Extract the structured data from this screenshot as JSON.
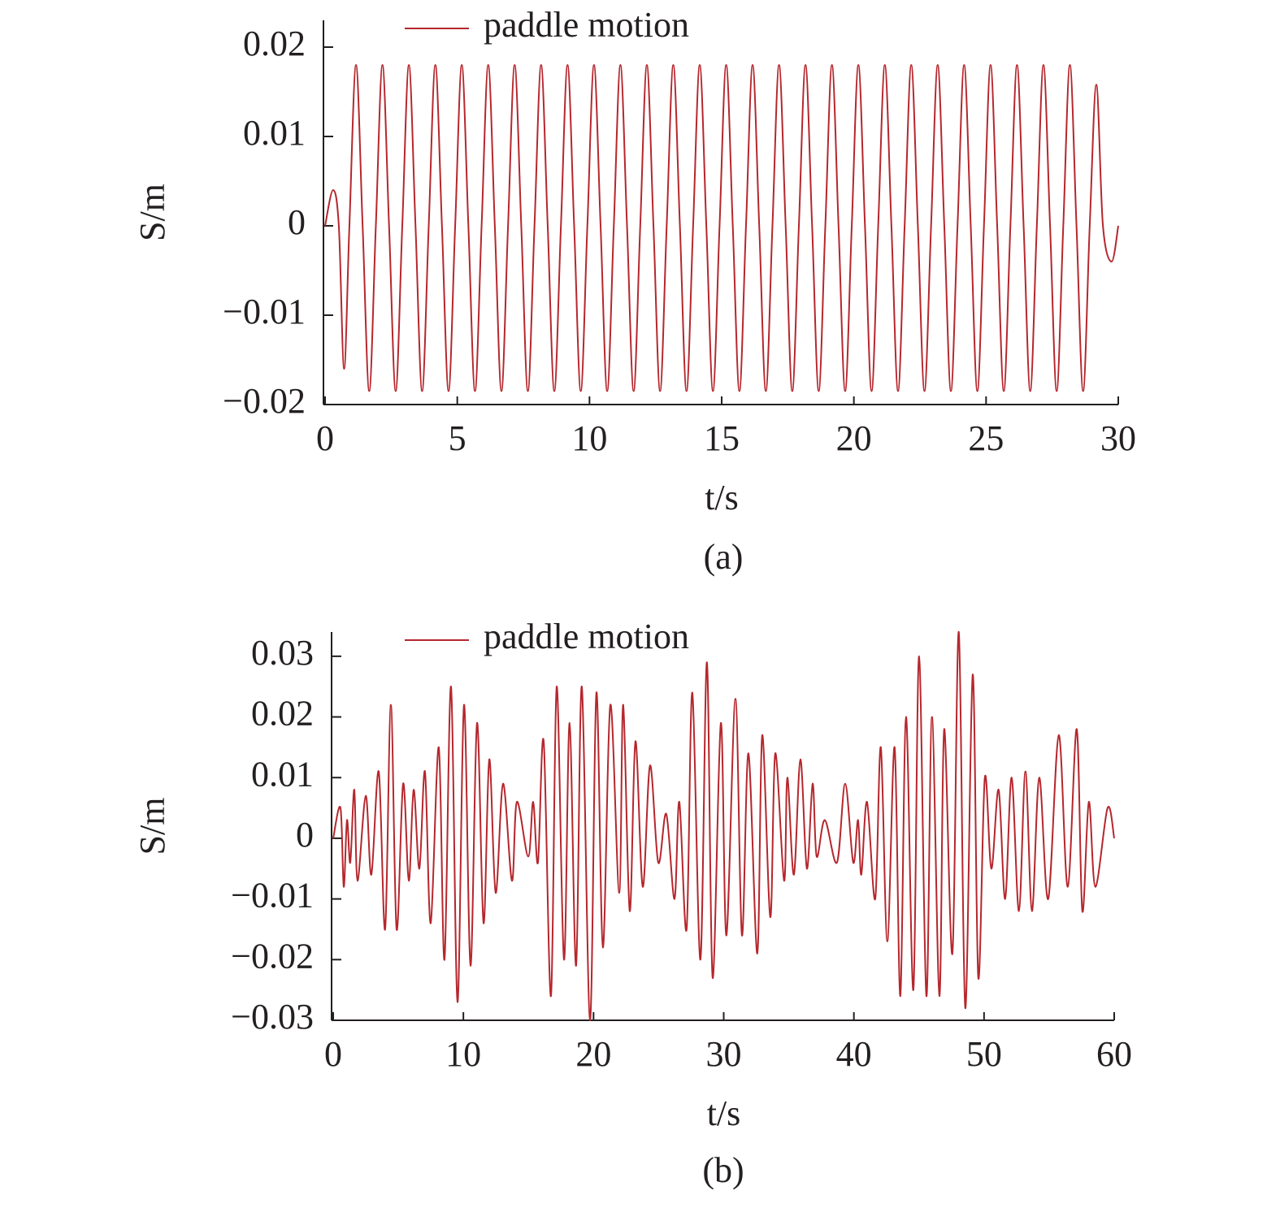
{
  "chart_data": [
    {
      "type": "line",
      "caption": "(a)",
      "x_label": "t/s",
      "y_label": "S/m",
      "x": [
        0,
        0.3,
        0.52,
        0.72,
        0.92,
        1.17,
        1.42,
        1.67,
        1.92,
        2.17,
        2.42,
        2.67,
        2.92,
        3.17,
        3.42,
        3.67,
        3.92,
        4.17,
        4.42,
        4.67,
        4.92,
        5.17,
        5.42,
        5.67,
        5.92,
        6.17,
        6.42,
        6.67,
        6.92,
        7.17,
        7.42,
        7.67,
        7.92,
        8.17,
        8.42,
        8.67,
        8.92,
        9.17,
        9.42,
        9.67,
        9.92,
        10.17,
        10.42,
        10.67,
        10.92,
        11.17,
        11.42,
        11.67,
        11.92,
        12.17,
        12.42,
        12.67,
        12.92,
        13.17,
        13.42,
        13.67,
        13.92,
        14.17,
        14.42,
        14.67,
        14.92,
        15.17,
        15.42,
        15.67,
        15.92,
        16.17,
        16.42,
        16.67,
        16.92,
        17.17,
        17.42,
        17.67,
        17.92,
        18.17,
        18.42,
        18.67,
        18.92,
        19.17,
        19.42,
        19.67,
        19.92,
        20.17,
        20.42,
        20.67,
        20.92,
        21.17,
        21.42,
        21.67,
        21.92,
        22.17,
        22.42,
        22.67,
        22.92,
        23.17,
        23.42,
        23.67,
        23.92,
        24.17,
        24.42,
        24.67,
        24.92,
        25.17,
        25.42,
        25.67,
        25.92,
        26.17,
        26.42,
        26.67,
        26.92,
        27.17,
        27.42,
        27.67,
        27.92,
        28.17,
        28.42,
        28.67,
        28.92,
        29.17,
        29.42,
        29.75,
        30
      ],
      "series": [
        {
          "name": "paddle motion",
          "color": "#b5272d",
          "values": [
            0,
            0.004,
            0,
            -0.016,
            0,
            0.018,
            0,
            -0.0185,
            0,
            0.018,
            0,
            -0.0185,
            0,
            0.018,
            0,
            -0.0185,
            0,
            0.018,
            0,
            -0.0185,
            0,
            0.018,
            0,
            -0.0185,
            0,
            0.018,
            0,
            -0.0185,
            0,
            0.018,
            0,
            -0.0185,
            0,
            0.018,
            0,
            -0.0185,
            0,
            0.018,
            0,
            -0.0185,
            0,
            0.018,
            0,
            -0.0185,
            0,
            0.018,
            0,
            -0.0185,
            0,
            0.018,
            0,
            -0.0185,
            0,
            0.018,
            0,
            -0.0185,
            0,
            0.018,
            0,
            -0.0185,
            0,
            0.018,
            0,
            -0.0185,
            0,
            0.018,
            0,
            -0.0185,
            0,
            0.018,
            0,
            -0.0185,
            0,
            0.018,
            0,
            -0.0185,
            0,
            0.018,
            0,
            -0.0185,
            0,
            0.018,
            0,
            -0.0185,
            0,
            0.018,
            0,
            -0.0185,
            0,
            0.018,
            0,
            -0.0185,
            0,
            0.018,
            0,
            -0.0185,
            0,
            0.018,
            0,
            -0.0185,
            0,
            0.018,
            0,
            -0.0185,
            0,
            0.018,
            0,
            -0.0185,
            0,
            0.018,
            0,
            -0.0185,
            0,
            0.018,
            0,
            -0.0185,
            0,
            0.0158,
            0,
            -0.004,
            0
          ]
        }
      ],
      "xlim": [
        0,
        30
      ],
      "ylim": [
        -0.02,
        0.023
      ],
      "xticks": [
        0,
        5,
        10,
        15,
        20,
        25,
        30
      ],
      "yticks": [
        {
          "value": -0.02,
          "label": "−0.02"
        },
        {
          "value": -0.01,
          "label": "−0.01"
        },
        0,
        0.01,
        0.02
      ]
    },
    {
      "type": "line",
      "caption": "(b)",
      "x_label": "t/s",
      "y_label": "S/m",
      "x": [
        0,
        0.56,
        0.81,
        1.06,
        1.31,
        1.62,
        1.87,
        2.5,
        2.93,
        3.5,
        3.99,
        4.43,
        4.87,
        5.37,
        5.81,
        6.18,
        6.62,
        7.05,
        7.49,
        8.11,
        8.55,
        9.05,
        9.55,
        10.05,
        10.55,
        11.05,
        11.55,
        11.99,
        12.48,
        13.05,
        13.73,
        14.11,
        14.98,
        15.36,
        15.73,
        16.17,
        16.73,
        17.17,
        17.73,
        18.16,
        18.66,
        19.1,
        19.73,
        20.22,
        20.72,
        21.29,
        21.97,
        22.28,
        22.78,
        23.22,
        23.78,
        24.34,
        24.97,
        25.59,
        26.22,
        26.59,
        27.15,
        27.59,
        28.21,
        28.71,
        29.15,
        29.78,
        30.21,
        30.9,
        31.4,
        31.9,
        32.58,
        32.96,
        33.58,
        33.96,
        34.64,
        34.89,
        35.39,
        35.89,
        36.39,
        36.83,
        37.14,
        37.77,
        38.7,
        39.33,
        39.95,
        40.32,
        40.57,
        41.01,
        41.64,
        42.07,
        42.57,
        43.13,
        43.57,
        44.01,
        44.57,
        45.01,
        45.57,
        46.0,
        46.57,
        46.94,
        47.57,
        48.06,
        48.56,
        49.13,
        49.56,
        50.06,
        50.56,
        51.12,
        51.62,
        52.12,
        52.68,
        53.18,
        53.68,
        54.24,
        54.93,
        55.74,
        56.43,
        57.12,
        57.55,
        58.05,
        58.55,
        59.49,
        60
      ],
      "series": [
        {
          "name": "paddle motion",
          "color": "#b5272d",
          "values": [
            0,
            0.005,
            -0.008,
            0.003,
            -0.004,
            0.008,
            -0.007,
            0.007,
            -0.006,
            0.011,
            -0.015,
            0.022,
            -0.015,
            0.009,
            -0.007,
            0.008,
            -0.005,
            0.011,
            -0.014,
            0.015,
            -0.02,
            0.025,
            -0.027,
            0.022,
            -0.021,
            0.019,
            -0.014,
            0.013,
            -0.009,
            0.009,
            -0.007,
            0.006,
            -0.003,
            0.006,
            -0.004,
            0.016,
            -0.026,
            0.025,
            -0.02,
            0.019,
            -0.021,
            0.025,
            -0.03,
            0.024,
            -0.018,
            0.022,
            -0.009,
            0.022,
            -0.012,
            0.016,
            -0.008,
            0.012,
            -0.004,
            0.004,
            -0.01,
            0.006,
            -0.015,
            0.024,
            -0.02,
            0.029,
            -0.023,
            0.019,
            -0.016,
            0.023,
            -0.016,
            0.014,
            -0.019,
            0.017,
            -0.013,
            0.014,
            -0.007,
            0.01,
            -0.006,
            0.013,
            -0.005,
            0.009,
            -0.003,
            0.003,
            -0.004,
            0.009,
            -0.004,
            0.003,
            -0.006,
            0.006,
            -0.01,
            0.015,
            -0.017,
            0.015,
            -0.026,
            0.02,
            -0.025,
            0.03,
            -0.026,
            0.02,
            -0.026,
            0.018,
            -0.019,
            0.034,
            -0.028,
            0.027,
            -0.023,
            0.01,
            -0.005,
            0.008,
            -0.01,
            0.01,
            -0.012,
            0.011,
            -0.012,
            0.01,
            -0.01,
            0.017,
            -0.008,
            0.018,
            -0.012,
            0.006,
            -0.008,
            0.005,
            0
          ]
        }
      ],
      "xlim": [
        0,
        60
      ],
      "ylim": [
        -0.03,
        0.034
      ],
      "xticks": [
        0,
        10,
        20,
        30,
        40,
        50,
        60
      ],
      "yticks": [
        {
          "value": -0.03,
          "label": "−0.03"
        },
        {
          "value": -0.02,
          "label": "−0.02"
        },
        {
          "value": -0.01,
          "label": "−0.01"
        },
        0,
        0.01,
        0.02,
        0.03
      ]
    }
  ]
}
